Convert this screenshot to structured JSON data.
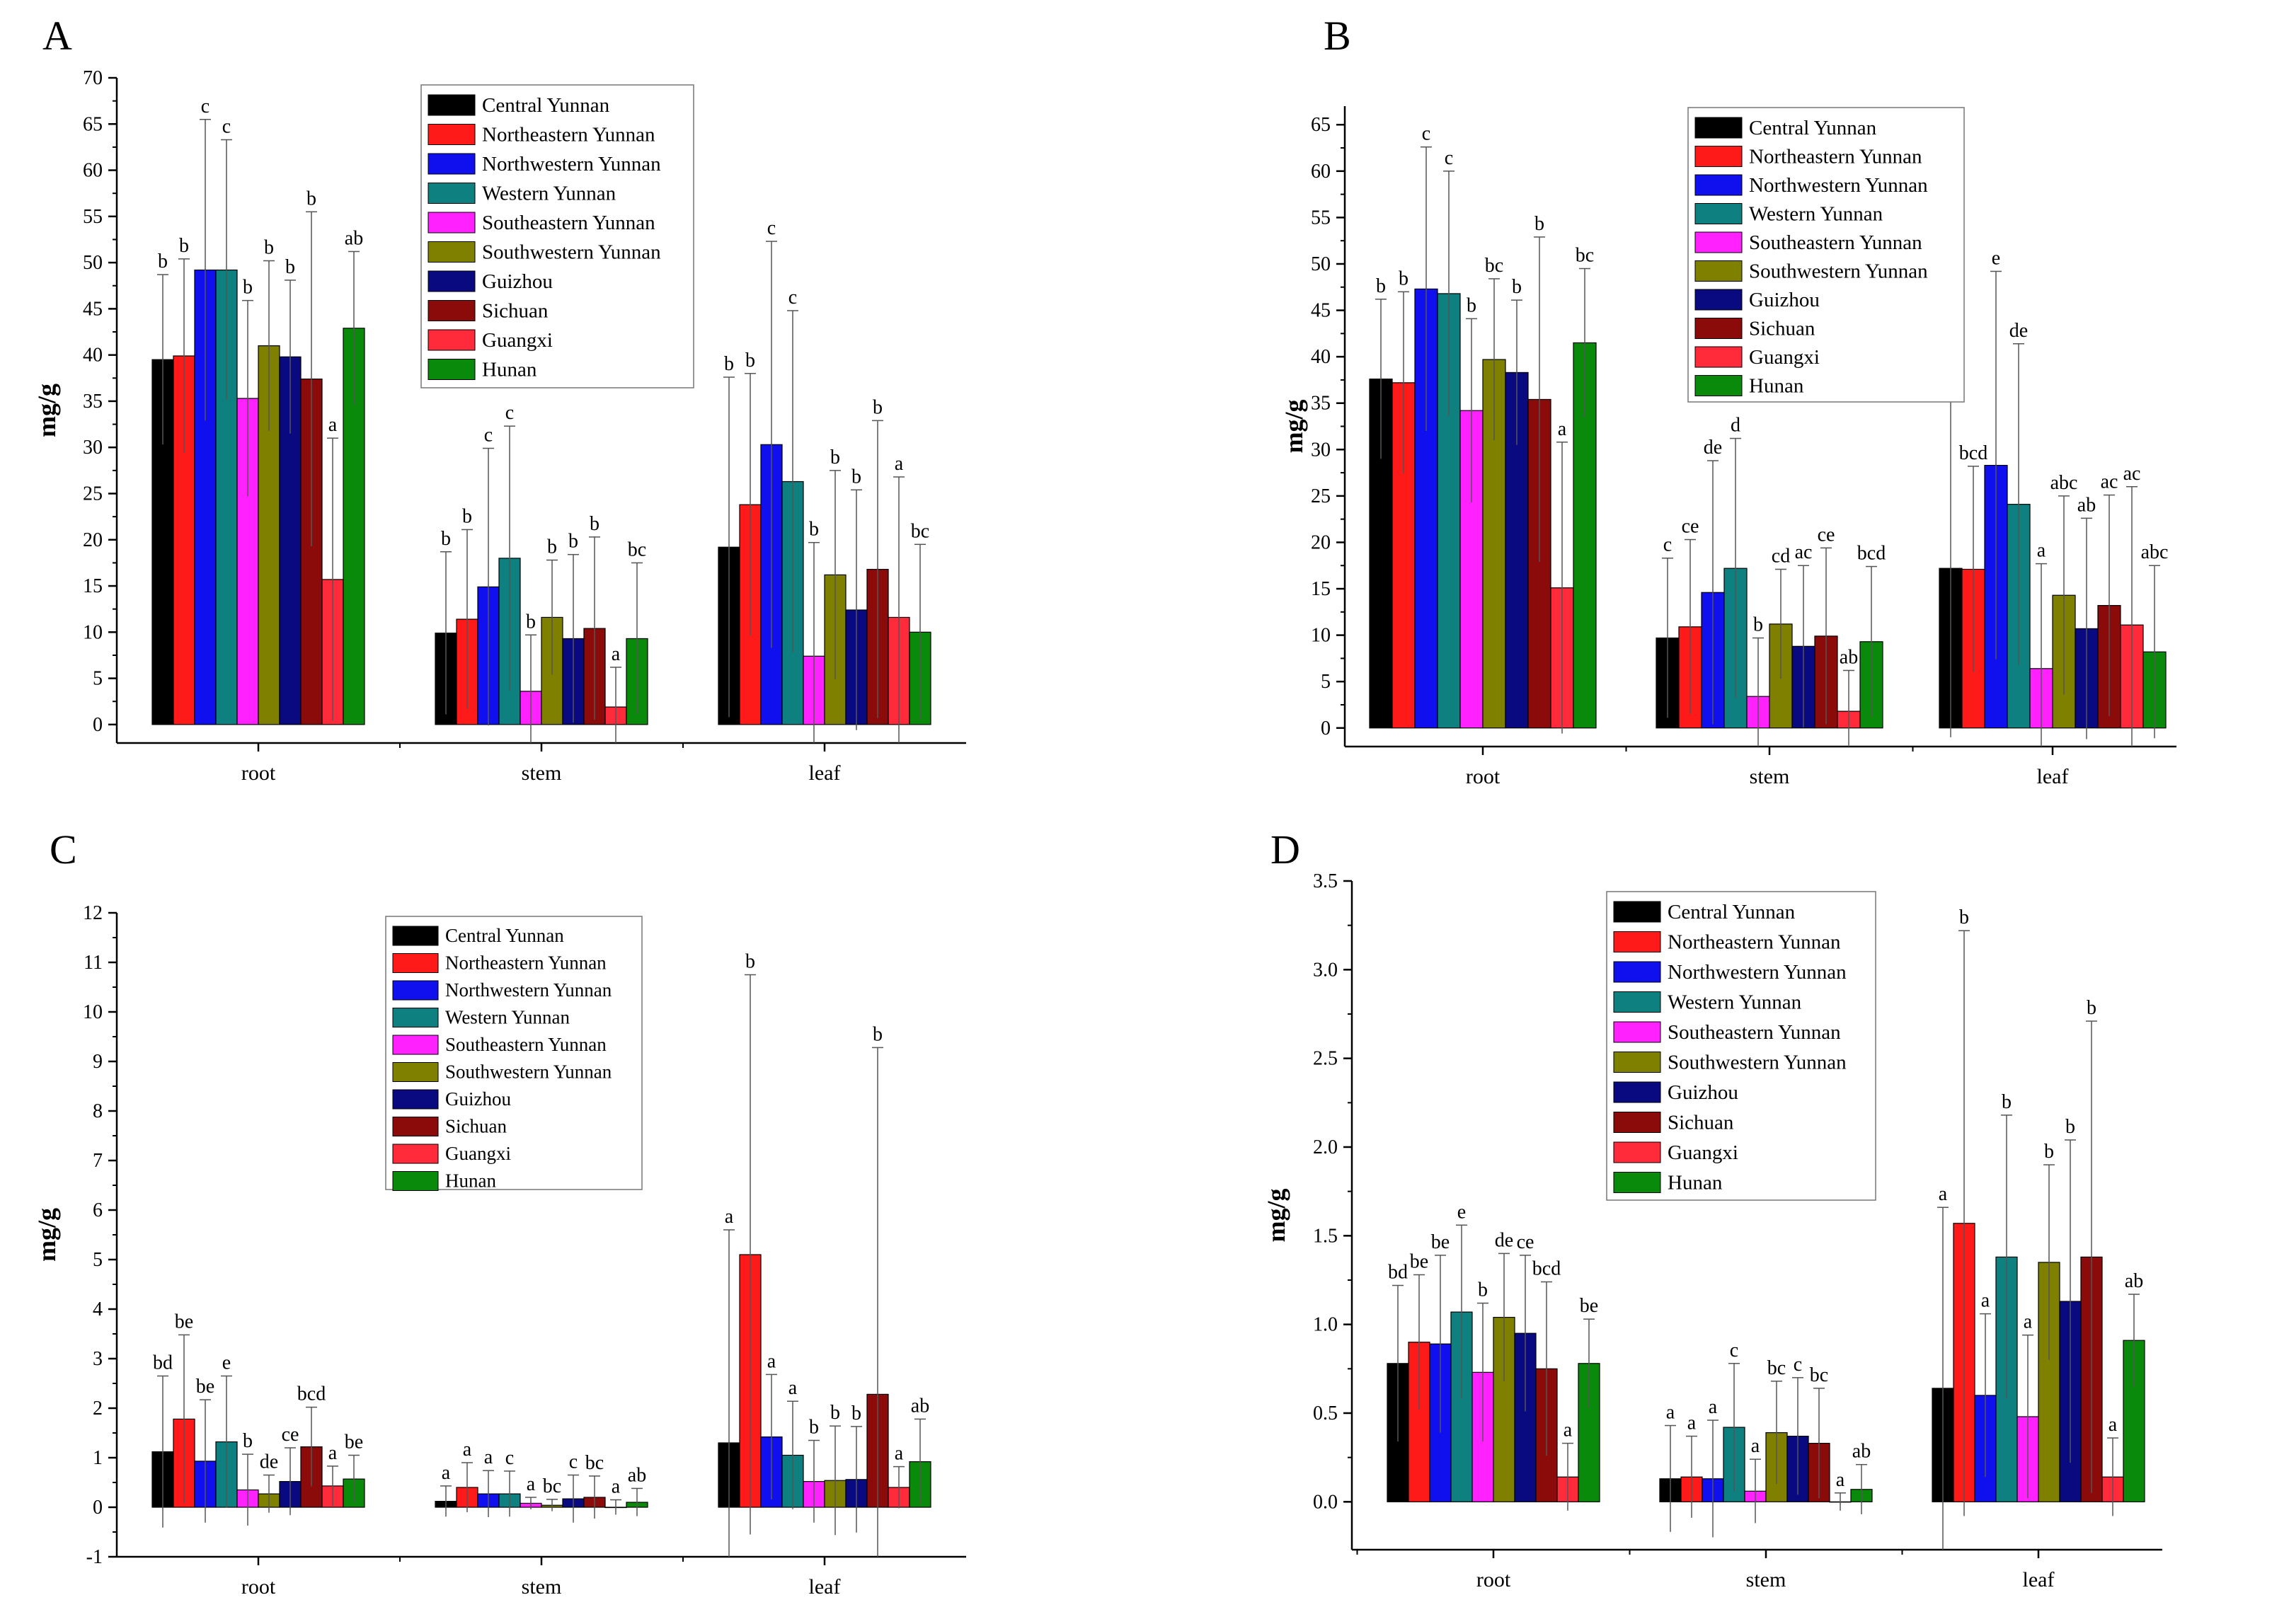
{
  "colors": {
    "Central Yunnan": "#000000",
    "Northeastern Yunnan": "#ff1a1a",
    "Northwestern Yunnan": "#1010ee",
    "Western Yunnan": "#0e8080",
    "Southeastern Yunnan": "#ff22ff",
    "Southwestern Yunnan": "#808000",
    "Guizhou": "#0a0a80",
    "Sichuan": "#8b0a0a",
    "Guangxi": "#ff2a3a",
    "Hunan": "#0a8a0a"
  },
  "chart_data": [
    {
      "panel": "A",
      "type": "bar",
      "ylabel": "mg/g",
      "ylim": [
        -2,
        70
      ],
      "yticks": [
        0,
        5,
        10,
        15,
        20,
        25,
        30,
        35,
        40,
        45,
        50,
        55,
        60,
        65,
        70
      ],
      "categories": [
        "root",
        "stem",
        "leaf"
      ],
      "legend_position": "top-center",
      "series": [
        {
          "name": "Central Yunnan",
          "values": [
            39.5,
            9.9,
            19.2
          ],
          "errors": [
            9.2,
            8.8,
            18.4
          ],
          "letters": [
            "b",
            "b",
            "b"
          ]
        },
        {
          "name": "Northeastern Yunnan",
          "values": [
            39.9,
            11.4,
            23.8
          ],
          "errors": [
            10.5,
            9.7,
            14.2
          ],
          "letters": [
            "b",
            "b",
            "b"
          ]
        },
        {
          "name": "Northwestern Yunnan",
          "values": [
            49.2,
            14.9,
            30.3
          ],
          "errors": [
            16.3,
            15.0,
            22.0
          ],
          "letters": [
            "c",
            "c",
            "c"
          ]
        },
        {
          "name": "Western Yunnan",
          "values": [
            49.2,
            18.0,
            26.3
          ],
          "errors": [
            14.1,
            14.3,
            18.5
          ],
          "letters": [
            "c",
            "c",
            "c"
          ]
        },
        {
          "name": "Southeastern Yunnan",
          "values": [
            35.3,
            3.6,
            7.4
          ],
          "errors": [
            10.6,
            6.1,
            12.3
          ],
          "letters": [
            "b",
            "b",
            "b"
          ]
        },
        {
          "name": "Southwestern Yunnan",
          "values": [
            41.0,
            11.6,
            16.2
          ],
          "errors": [
            9.2,
            6.2,
            11.3
          ],
          "letters": [
            "b",
            "b",
            "b"
          ]
        },
        {
          "name": "Guizhou",
          "values": [
            39.8,
            9.3,
            12.4
          ],
          "errors": [
            8.3,
            9.1,
            13.0
          ],
          "letters": [
            "b",
            "b",
            "b"
          ]
        },
        {
          "name": "Sichuan",
          "values": [
            37.4,
            10.4,
            16.8
          ],
          "errors": [
            18.1,
            9.9,
            16.1
          ],
          "letters": [
            "b",
            "b",
            "b"
          ]
        },
        {
          "name": "Guangxi",
          "values": [
            15.7,
            1.9,
            11.6
          ],
          "errors": [
            15.3,
            4.3,
            15.2
          ],
          "letters": [
            "a",
            "a",
            "a"
          ]
        },
        {
          "name": "Hunan",
          "values": [
            42.9,
            9.3,
            10.0
          ],
          "errors": [
            8.3,
            8.2,
            9.5
          ],
          "letters": [
            "ab",
            "bc",
            "bc"
          ]
        }
      ]
    },
    {
      "panel": "B",
      "type": "bar",
      "ylabel": "mg/g",
      "ylim": [
        -2,
        67
      ],
      "yticks": [
        0,
        5,
        10,
        15,
        20,
        25,
        30,
        35,
        40,
        45,
        50,
        55,
        60,
        65
      ],
      "categories": [
        "root",
        "stem",
        "leaf"
      ],
      "legend_position": "top-center",
      "series": [
        {
          "name": "Central Yunnan",
          "values": [
            37.6,
            9.7,
            17.2
          ],
          "errors": [
            8.6,
            8.6,
            18.2
          ],
          "letters": [
            "b",
            "c",
            "c"
          ]
        },
        {
          "name": "Northeastern Yunnan",
          "values": [
            37.2,
            10.9,
            17.1
          ],
          "errors": [
            9.8,
            9.4,
            11.1
          ],
          "letters": [
            "b",
            "ce",
            "bcd"
          ]
        },
        {
          "name": "Northwestern Yunnan",
          "values": [
            47.3,
            14.6,
            28.3
          ],
          "errors": [
            15.3,
            14.2,
            20.9
          ],
          "letters": [
            "c",
            "de",
            "e"
          ]
        },
        {
          "name": "Western Yunnan",
          "values": [
            46.8,
            17.2,
            24.1
          ],
          "errors": [
            13.2,
            14.0,
            17.3
          ],
          "letters": [
            "c",
            "d",
            "de"
          ]
        },
        {
          "name": "Southeastern Yunnan",
          "values": [
            34.2,
            3.4,
            6.4
          ],
          "errors": [
            9.9,
            6.3,
            11.3
          ],
          "letters": [
            "b",
            "b",
            "a"
          ]
        },
        {
          "name": "Southwestern Yunnan",
          "values": [
            39.7,
            11.2,
            14.3
          ],
          "errors": [
            8.7,
            5.9,
            10.7
          ],
          "letters": [
            "bc",
            "cd",
            "abc"
          ]
        },
        {
          "name": "Guizhou",
          "values": [
            38.3,
            8.8,
            10.7
          ],
          "errors": [
            7.8,
            8.7,
            11.9
          ],
          "letters": [
            "b",
            "ac",
            "ab"
          ]
        },
        {
          "name": "Sichuan",
          "values": [
            35.4,
            9.9,
            13.2
          ],
          "errors": [
            17.5,
            9.5,
            11.9
          ],
          "letters": [
            "b",
            "ce",
            "ac"
          ]
        },
        {
          "name": "Guangxi",
          "values": [
            15.1,
            1.8,
            11.1
          ],
          "errors": [
            15.7,
            4.4,
            14.9
          ],
          "letters": [
            "a",
            "ab",
            "ac"
          ]
        },
        {
          "name": "Hunan",
          "values": [
            41.5,
            9.3,
            8.2
          ],
          "errors": [
            8.0,
            8.1,
            9.3
          ],
          "letters": [
            "bc",
            "bcd",
            "abc"
          ]
        }
      ]
    },
    {
      "panel": "C",
      "type": "bar",
      "ylabel": "mg/g",
      "ylim": [
        -1,
        12
      ],
      "yticks": [
        -1,
        0,
        1,
        2,
        3,
        4,
        5,
        6,
        7,
        8,
        9,
        10,
        11,
        12
      ],
      "categories": [
        "root",
        "stem",
        "leaf"
      ],
      "legend_position": "top-center",
      "series": [
        {
          "name": "Central Yunnan",
          "values": [
            1.12,
            0.12,
            1.3
          ],
          "errors": [
            1.53,
            0.31,
            4.3
          ],
          "letters": [
            "bd",
            "a",
            "a"
          ]
        },
        {
          "name": "Northeastern Yunnan",
          "values": [
            1.78,
            0.4,
            5.1
          ],
          "errors": [
            1.7,
            0.5,
            5.65
          ],
          "letters": [
            "be",
            "a",
            "b"
          ]
        },
        {
          "name": "Northwestern Yunnan",
          "values": [
            0.93,
            0.27,
            1.42
          ],
          "errors": [
            1.24,
            0.47,
            1.26
          ],
          "letters": [
            "be",
            "a",
            "a"
          ]
        },
        {
          "name": "Western Yunnan",
          "values": [
            1.32,
            0.27,
            1.05
          ],
          "errors": [
            1.33,
            0.46,
            1.09
          ],
          "letters": [
            "e",
            "c",
            "a"
          ]
        },
        {
          "name": "Southeastern Yunnan",
          "values": [
            0.35,
            0.08,
            0.52
          ],
          "errors": [
            0.72,
            0.12,
            0.83
          ],
          "letters": [
            "b",
            "a",
            "b"
          ]
        },
        {
          "name": "Southwestern Yunnan",
          "values": [
            0.27,
            0.04,
            0.54
          ],
          "errors": [
            0.38,
            0.12,
            1.1
          ],
          "letters": [
            "de",
            "bc",
            "b"
          ]
        },
        {
          "name": "Guizhou",
          "values": [
            0.52,
            0.17,
            0.56
          ],
          "errors": [
            0.68,
            0.48,
            1.07
          ],
          "letters": [
            "ce",
            "c",
            "b"
          ]
        },
        {
          "name": "Sichuan",
          "values": [
            1.22,
            0.2,
            2.28
          ],
          "errors": [
            0.8,
            0.43,
            7.0
          ],
          "letters": [
            "bcd",
            "bc",
            "b"
          ]
        },
        {
          "name": "Guangxi",
          "values": [
            0.43,
            0.0,
            0.4
          ],
          "errors": [
            0.4,
            0.15,
            0.42
          ],
          "letters": [
            "a",
            "a",
            "a"
          ]
        },
        {
          "name": "Hunan",
          "values": [
            0.57,
            0.1,
            0.92
          ],
          "errors": [
            0.48,
            0.28,
            0.86
          ],
          "letters": [
            "be",
            "ab",
            "ab"
          ]
        }
      ]
    },
    {
      "panel": "D",
      "type": "bar",
      "ylabel": "mg/g",
      "ylim": [
        -0.27,
        3.5
      ],
      "yticks": [
        0.0,
        0.5,
        1.0,
        1.5,
        2.0,
        2.5,
        3.0,
        3.5
      ],
      "ytick_labels": [
        "0.0",
        "0.5",
        "1.0",
        "1.5",
        "2.0",
        "2.5",
        "3.0",
        "3.5"
      ],
      "categories": [
        "root",
        "stem",
        "leaf"
      ],
      "legend_position": "top-center",
      "series": [
        {
          "name": "Central Yunnan",
          "values": [
            0.78,
            0.13,
            0.64
          ],
          "errors": [
            0.44,
            0.3,
            1.02
          ],
          "letters": [
            "bd",
            "a",
            "a"
          ]
        },
        {
          "name": "Northeastern Yunnan",
          "values": [
            0.9,
            0.14,
            1.57
          ],
          "errors": [
            0.38,
            0.23,
            1.65
          ],
          "letters": [
            "be",
            "a",
            "b"
          ]
        },
        {
          "name": "Northwestern Yunnan",
          "values": [
            0.89,
            0.13,
            0.6
          ],
          "errors": [
            0.5,
            0.33,
            0.46
          ],
          "letters": [
            "be",
            "a",
            "a"
          ]
        },
        {
          "name": "Western Yunnan",
          "values": [
            1.07,
            0.42,
            1.38
          ],
          "errors": [
            0.49,
            0.36,
            0.8
          ],
          "letters": [
            "e",
            "c",
            "b"
          ]
        },
        {
          "name": "Southeastern Yunnan",
          "values": [
            0.73,
            0.06,
            0.48
          ],
          "errors": [
            0.39,
            0.18,
            0.46
          ],
          "letters": [
            "b",
            "a",
            "a"
          ]
        },
        {
          "name": "Southwestern Yunnan",
          "values": [
            1.04,
            0.39,
            1.35
          ],
          "errors": [
            0.36,
            0.29,
            0.55
          ],
          "letters": [
            "de",
            "bc",
            "b"
          ]
        },
        {
          "name": "Guizhou",
          "values": [
            0.95,
            0.37,
            1.13
          ],
          "errors": [
            0.44,
            0.33,
            0.91
          ],
          "letters": [
            "ce",
            "c",
            "b"
          ]
        },
        {
          "name": "Sichuan",
          "values": [
            0.75,
            0.33,
            1.38
          ],
          "errors": [
            0.49,
            0.31,
            1.33
          ],
          "letters": [
            "bcd",
            "bc",
            "b"
          ]
        },
        {
          "name": "Guangxi",
          "values": [
            0.14,
            0.0,
            0.14
          ],
          "errors": [
            0.19,
            0.05,
            0.22
          ],
          "letters": [
            "a",
            "a",
            "a"
          ]
        },
        {
          "name": "Hunan",
          "values": [
            0.78,
            0.07,
            0.91
          ],
          "errors": [
            0.25,
            0.14,
            0.26
          ],
          "letters": [
            "be",
            "ab",
            "ab"
          ]
        }
      ]
    }
  ]
}
